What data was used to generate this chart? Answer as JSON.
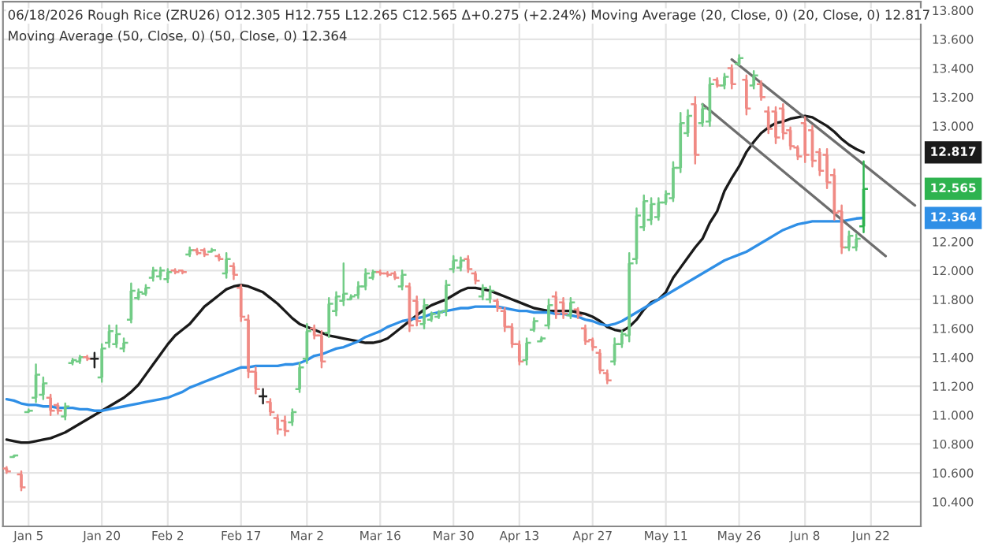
{
  "chart_data": {
    "type": "candlestick",
    "title": "06/18/2026 Rough Rice (ZRU26) O12.305 H12.755 L12.265 C12.565 Δ+0.275 (+2.24%) Moving Average (20, Close, 0) (20, Close, 0) 12.817",
    "subtitle": "Moving Average (50, Close, 0) (50, Close, 0) 12.364",
    "categories": [
      null,
      null,
      null,
      "Jan 5",
      null,
      null,
      null,
      null,
      null,
      null,
      null,
      null,
      null,
      "Jan 20",
      null,
      null,
      null,
      null,
      null,
      null,
      null,
      null,
      "Feb 2",
      null,
      null,
      null,
      null,
      null,
      null,
      null,
      null,
      null,
      "Feb 17",
      null,
      null,
      null,
      null,
      null,
      null,
      null,
      null,
      "Mar 2",
      null,
      null,
      null,
      null,
      null,
      null,
      null,
      null,
      null,
      "Mar 16",
      null,
      null,
      null,
      null,
      null,
      null,
      null,
      null,
      null,
      "Mar 30",
      null,
      null,
      null,
      null,
      null,
      null,
      null,
      null,
      "Apr 13",
      null,
      null,
      null,
      null,
      null,
      null,
      null,
      null,
      null,
      "Apr 27",
      null,
      null,
      null,
      null,
      null,
      null,
      null,
      null,
      null,
      "May 11",
      null,
      null,
      null,
      null,
      null,
      null,
      null,
      null,
      null,
      "May 26",
      null,
      null,
      null,
      null,
      null,
      null,
      null,
      null,
      "Jun 8",
      null,
      null,
      null,
      null,
      null,
      null,
      null,
      null,
      "Jun 22",
      null,
      null,
      null,
      null,
      null,
      null
    ],
    "ohlc": [
      [
        10.63,
        10.64,
        10.6,
        10.61
      ],
      [
        10.71,
        10.72,
        10.71,
        10.72
      ],
      [
        10.59,
        10.61,
        10.48,
        10.5
      ],
      [
        11.02,
        11.04,
        11.02,
        11.03
      ],
      [
        11.12,
        11.35,
        11.09,
        11.28
      ],
      [
        11.14,
        11.26,
        11.11,
        11.22
      ],
      [
        11.12,
        11.14,
        11.0,
        11.03
      ],
      [
        11.07,
        11.08,
        11.01,
        11.03
      ],
      [
        10.99,
        11.08,
        10.97,
        11.06
      ],
      [
        11.36,
        11.39,
        11.35,
        11.38
      ],
      [
        11.37,
        11.41,
        11.36,
        11.4
      ],
      [
        11.4,
        11.41,
        11.38,
        11.39
      ],
      [
        11.39,
        11.43,
        11.33,
        11.39
      ],
      [
        11.26,
        11.49,
        11.23,
        11.46
      ],
      [
        11.5,
        11.62,
        11.47,
        11.58
      ],
      [
        11.49,
        11.62,
        11.47,
        11.56
      ],
      [
        11.46,
        11.53,
        11.44,
        11.5
      ],
      [
        11.66,
        11.91,
        11.64,
        11.86
      ],
      [
        11.81,
        11.87,
        11.8,
        11.85
      ],
      [
        11.84,
        11.9,
        11.83,
        11.88
      ],
      [
        11.95,
        12.02,
        11.93,
        12.0
      ],
      [
        11.96,
        12.02,
        11.94,
        12.0
      ],
      [
        11.94,
        12.01,
        11.92,
        11.99
      ],
      [
        12.0,
        12.01,
        11.98,
        11.99
      ],
      [
        12.0,
        12.0,
        11.98,
        11.99
      ],
      [
        12.11,
        12.16,
        12.1,
        12.14
      ],
      [
        12.14,
        12.15,
        12.11,
        12.12
      ],
      [
        12.14,
        12.15,
        12.1,
        12.11
      ],
      [
        12.13,
        12.15,
        12.13,
        12.14
      ],
      [
        12.1,
        12.11,
        12.07,
        12.08
      ],
      [
        11.98,
        12.12,
        11.95,
        12.08
      ],
      [
        12.03,
        12.05,
        11.94,
        11.97
      ],
      [
        11.88,
        11.9,
        11.65,
        11.68
      ],
      [
        11.66,
        11.69,
        11.26,
        11.3
      ],
      [
        11.3,
        11.33,
        11.15,
        11.18
      ],
      [
        11.13,
        11.18,
        11.08,
        11.13
      ],
      [
        11.09,
        11.11,
        11.0,
        11.02
      ],
      [
        10.98,
        11.0,
        10.87,
        10.9
      ],
      [
        10.96,
        10.99,
        10.86,
        10.89
      ],
      [
        10.95,
        11.04,
        10.93,
        11.02
      ],
      [
        11.18,
        11.36,
        11.16,
        11.33
      ],
      [
        11.39,
        11.63,
        11.36,
        11.58
      ],
      [
        11.6,
        11.62,
        11.53,
        11.55
      ],
      [
        11.55,
        11.58,
        11.33,
        11.37
      ],
      [
        11.57,
        11.81,
        11.54,
        11.77
      ],
      [
        11.72,
        11.85,
        11.69,
        11.82
      ],
      [
        11.79,
        12.05,
        11.76,
        11.84
      ],
      [
        11.8,
        11.83,
        11.8,
        11.82
      ],
      [
        11.83,
        11.92,
        11.81,
        11.89
      ],
      [
        11.89,
        12.01,
        11.87,
        11.98
      ],
      [
        11.95,
        12.0,
        11.94,
        11.99
      ],
      [
        11.99,
        12.0,
        11.97,
        11.98
      ],
      [
        11.98,
        11.99,
        11.96,
        11.97
      ],
      [
        11.98,
        11.99,
        11.94,
        11.95
      ],
      [
        11.89,
        12.0,
        11.87,
        11.97
      ],
      [
        11.89,
        11.91,
        11.58,
        11.62
      ],
      [
        11.79,
        11.82,
        11.62,
        11.65
      ],
      [
        11.63,
        11.8,
        11.6,
        11.76
      ],
      [
        11.66,
        11.71,
        11.65,
        11.7
      ],
      [
        11.68,
        11.72,
        11.67,
        11.71
      ],
      [
        11.72,
        11.93,
        11.69,
        11.9
      ],
      [
        12.01,
        12.1,
        11.99,
        12.07
      ],
      [
        12.02,
        12.09,
        12.0,
        12.07
      ],
      [
        12.08,
        12.1,
        11.99,
        12.01
      ],
      [
        11.98,
        11.99,
        11.91,
        11.93
      ],
      [
        11.82,
        11.9,
        11.8,
        11.88
      ],
      [
        11.8,
        11.89,
        11.78,
        11.86
      ],
      [
        11.79,
        11.8,
        11.72,
        11.74
      ],
      [
        11.72,
        11.74,
        11.58,
        11.61
      ],
      [
        11.61,
        11.63,
        11.47,
        11.49
      ],
      [
        11.49,
        11.51,
        11.35,
        11.37
      ],
      [
        11.38,
        11.53,
        11.35,
        11.5
      ],
      [
        11.59,
        11.67,
        11.58,
        11.65
      ],
      [
        11.51,
        11.54,
        11.51,
        11.53
      ],
      [
        11.62,
        11.8,
        11.6,
        11.76
      ],
      [
        11.82,
        11.85,
        11.67,
        11.7
      ],
      [
        11.78,
        11.81,
        11.67,
        11.7
      ],
      [
        11.69,
        11.81,
        11.67,
        11.78
      ],
      [
        11.73,
        11.74,
        11.67,
        11.69
      ],
      [
        11.6,
        11.62,
        11.49,
        11.51
      ],
      [
        11.52,
        11.53,
        11.45,
        11.47
      ],
      [
        11.43,
        11.45,
        11.29,
        11.31
      ],
      [
        11.29,
        11.31,
        11.22,
        11.24
      ],
      [
        11.37,
        11.53,
        11.35,
        11.49
      ],
      [
        11.49,
        11.58,
        11.47,
        11.56
      ],
      [
        11.55,
        12.12,
        11.51,
        12.05
      ],
      [
        12.08,
        12.43,
        12.05,
        12.38
      ],
      [
        12.3,
        12.52,
        12.28,
        12.48
      ],
      [
        12.35,
        12.5,
        12.32,
        12.46
      ],
      [
        12.37,
        12.5,
        12.35,
        12.47
      ],
      [
        12.47,
        12.55,
        12.46,
        12.53
      ],
      [
        12.5,
        12.75,
        12.48,
        12.71
      ],
      [
        12.71,
        13.09,
        12.68,
        13.02
      ],
      [
        12.95,
        13.11,
        12.93,
        13.07
      ],
      [
        13.15,
        13.2,
        12.74,
        12.8
      ],
      [
        13.02,
        13.15,
        13.0,
        13.12
      ],
      [
        13.03,
        13.33,
        13.0,
        13.29
      ],
      [
        13.32,
        13.33,
        13.27,
        13.28
      ],
      [
        13.28,
        13.36,
        13.26,
        13.34
      ],
      [
        13.4,
        13.42,
        13.26,
        13.29
      ],
      [
        13.43,
        13.49,
        13.42,
        13.47
      ],
      [
        13.32,
        13.35,
        13.08,
        13.12
      ],
      [
        13.28,
        13.38,
        13.26,
        13.35
      ],
      [
        13.29,
        13.31,
        13.18,
        13.2
      ],
      [
        13.1,
        13.13,
        12.95,
        12.98
      ],
      [
        13.1,
        13.13,
        12.88,
        12.92
      ],
      [
        13.12,
        13.15,
        12.91,
        12.95
      ],
      [
        12.97,
        12.99,
        12.84,
        12.86
      ],
      [
        12.85,
        12.86,
        12.77,
        12.79
      ],
      [
        13.02,
        13.06,
        12.75,
        12.8
      ],
      [
        12.97,
        13.0,
        12.72,
        12.76
      ],
      [
        12.82,
        12.84,
        12.66,
        12.69
      ],
      [
        12.8,
        12.84,
        12.57,
        12.61
      ],
      [
        12.66,
        12.7,
        12.35,
        12.4
      ],
      [
        12.41,
        12.45,
        12.12,
        12.16
      ],
      [
        12.16,
        12.27,
        12.14,
        12.24
      ],
      [
        12.16,
        12.25,
        12.14,
        12.22
      ],
      [
        12.305,
        12.755,
        12.265,
        12.565
      ],
      null,
      null,
      null,
      null,
      null,
      null,
      null
    ],
    "colors": [
      "#f08a84",
      "#72cc86",
      "#f08a84",
      "#72cc86",
      "#72cc86",
      "#72cc86",
      "#f08a84",
      "#f08a84",
      "#72cc86",
      "#72cc86",
      "#72cc86",
      "#f08a84",
      "#222222",
      "#72cc86",
      "#72cc86",
      "#72cc86",
      "#72cc86",
      "#72cc86",
      "#72cc86",
      "#72cc86",
      "#72cc86",
      "#72cc86",
      "#72cc86",
      "#f08a84",
      "#f08a84",
      "#72cc86",
      "#f08a84",
      "#f08a84",
      "#72cc86",
      "#f08a84",
      "#72cc86",
      "#f08a84",
      "#f08a84",
      "#f08a84",
      "#f08a84",
      "#222222",
      "#f08a84",
      "#f08a84",
      "#f08a84",
      "#72cc86",
      "#72cc86",
      "#72cc86",
      "#f08a84",
      "#f08a84",
      "#72cc86",
      "#72cc86",
      "#72cc86",
      "#72cc86",
      "#72cc86",
      "#72cc86",
      "#72cc86",
      "#f08a84",
      "#f08a84",
      "#f08a84",
      "#72cc86",
      "#f08a84",
      "#f08a84",
      "#72cc86",
      "#72cc86",
      "#72cc86",
      "#72cc86",
      "#72cc86",
      "#72cc86",
      "#f08a84",
      "#f08a84",
      "#72cc86",
      "#72cc86",
      "#f08a84",
      "#f08a84",
      "#f08a84",
      "#f08a84",
      "#72cc86",
      "#72cc86",
      "#72cc86",
      "#72cc86",
      "#f08a84",
      "#f08a84",
      "#72cc86",
      "#f08a84",
      "#f08a84",
      "#f08a84",
      "#f08a84",
      "#f08a84",
      "#72cc86",
      "#72cc86",
      "#72cc86",
      "#72cc86",
      "#72cc86",
      "#72cc86",
      "#72cc86",
      "#72cc86",
      "#72cc86",
      "#72cc86",
      "#72cc86",
      "#f08a84",
      "#72cc86",
      "#72cc86",
      "#f08a84",
      "#72cc86",
      "#f08a84",
      "#72cc86",
      "#f08a84",
      "#72cc86",
      "#f08a84",
      "#f08a84",
      "#f08a84",
      "#f08a84",
      "#f08a84",
      "#f08a84",
      "#f08a84",
      "#f08a84",
      "#f08a84",
      "#f08a84",
      "#f08a84",
      "#f08a84",
      "#72cc86",
      "#72cc86",
      "#2eb34f",
      null,
      null,
      null,
      null,
      null,
      null,
      null
    ],
    "series": [
      {
        "type": "line",
        "color": "#1a1a1a",
        "values": [
          10.83,
          10.82,
          10.81,
          10.81,
          10.82,
          10.83,
          10.84,
          10.86,
          10.88,
          10.91,
          10.94,
          10.97,
          11.0,
          11.03,
          11.06,
          11.09,
          11.12,
          11.16,
          11.21,
          11.28,
          11.35,
          11.42,
          11.49,
          11.55,
          11.59,
          11.63,
          11.69,
          11.75,
          11.79,
          11.83,
          11.87,
          11.89,
          11.9,
          11.89,
          11.87,
          11.85,
          11.81,
          11.77,
          11.72,
          11.67,
          11.63,
          11.61,
          11.59,
          11.57,
          11.55,
          11.54,
          11.53,
          11.52,
          11.51,
          11.5,
          11.5,
          11.51,
          11.53,
          11.57,
          11.61,
          11.65,
          11.69,
          11.73,
          11.76,
          11.78,
          11.8,
          11.83,
          11.86,
          11.88,
          11.88,
          11.87,
          11.86,
          11.84,
          11.82,
          11.8,
          11.78,
          11.76,
          11.74,
          11.73,
          11.72,
          11.72,
          11.72,
          11.72,
          11.71,
          11.7,
          11.68,
          11.65,
          11.61,
          11.59,
          11.58,
          11.61,
          11.66,
          11.73,
          11.78,
          11.8,
          11.85,
          11.95,
          12.02,
          12.09,
          12.16,
          12.22,
          12.33,
          12.41,
          12.55,
          12.64,
          12.72,
          12.82,
          12.89,
          12.95,
          12.99,
          13.02,
          13.03,
          13.05,
          13.06,
          13.07,
          13.06,
          13.03,
          13.0,
          12.96,
          12.91,
          12.87,
          12.84,
          12.817,
          null,
          null,
          null,
          null,
          null,
          null,
          null
        ]
      },
      {
        "type": "line",
        "color": "#2f8fe6",
        "values": [
          11.11,
          11.1,
          11.08,
          11.07,
          11.07,
          11.06,
          11.06,
          11.05,
          11.05,
          11.05,
          11.04,
          11.04,
          11.03,
          11.03,
          11.04,
          11.05,
          11.06,
          11.07,
          11.08,
          11.09,
          11.1,
          11.11,
          11.12,
          11.14,
          11.16,
          11.19,
          11.21,
          11.23,
          11.25,
          11.27,
          11.29,
          11.31,
          11.33,
          11.33,
          11.34,
          11.34,
          11.34,
          11.34,
          11.35,
          11.35,
          11.36,
          11.38,
          11.41,
          11.42,
          11.44,
          11.46,
          11.47,
          11.49,
          11.51,
          11.54,
          11.56,
          11.58,
          11.61,
          11.63,
          11.65,
          11.66,
          11.67,
          11.68,
          11.7,
          11.71,
          11.72,
          11.73,
          11.74,
          11.74,
          11.75,
          11.75,
          11.75,
          11.75,
          11.74,
          11.73,
          11.72,
          11.72,
          11.71,
          11.71,
          11.71,
          11.7,
          11.7,
          11.69,
          11.68,
          11.66,
          11.65,
          11.63,
          11.62,
          11.63,
          11.65,
          11.68,
          11.71,
          11.74,
          11.77,
          11.8,
          11.83,
          11.86,
          11.89,
          11.92,
          11.95,
          11.98,
          12.01,
          12.04,
          12.07,
          12.09,
          12.11,
          12.13,
          12.16,
          12.19,
          12.22,
          12.25,
          12.28,
          12.3,
          12.32,
          12.33,
          12.34,
          12.34,
          12.34,
          12.34,
          12.34,
          12.35,
          12.36,
          12.364,
          null,
          null,
          null,
          null,
          null,
          null,
          null
        ]
      },
      {
        "type": "line",
        "color": "#6e6e6e",
        "values": [
          null,
          null,
          null,
          null,
          null,
          null,
          null,
          null,
          null,
          null,
          null,
          null,
          null,
          null,
          null,
          null,
          null,
          null,
          null,
          null,
          null,
          null,
          null,
          null,
          null,
          null,
          null,
          null,
          null,
          null,
          null,
          null,
          null,
          null,
          null,
          null,
          null,
          null,
          null,
          null,
          null,
          null,
          null,
          null,
          null,
          null,
          null,
          null,
          null,
          null,
          null,
          null,
          null,
          null,
          null,
          null,
          null,
          null,
          null,
          null,
          null,
          null,
          null,
          null,
          null,
          null,
          null,
          null,
          null,
          null,
          null,
          null,
          null,
          null,
          null,
          null,
          null,
          null,
          null,
          null,
          null,
          null,
          null,
          null,
          null,
          null,
          null,
          null,
          null,
          null,
          null,
          null,
          null,
          null,
          null,
          null,
          null,
          null,
          null,
          13.46,
          null,
          null,
          null,
          null,
          null,
          null,
          null,
          null,
          null,
          null,
          null,
          null,
          null,
          null,
          null,
          null,
          null,
          null,
          null,
          null,
          null,
          null,
          null,
          null,
          12.45
        ]
      },
      {
        "type": "line",
        "color": "#6e6e6e",
        "values": [
          null,
          null,
          null,
          null,
          null,
          null,
          null,
          null,
          null,
          null,
          null,
          null,
          null,
          null,
          null,
          null,
          null,
          null,
          null,
          null,
          null,
          null,
          null,
          null,
          null,
          null,
          null,
          null,
          null,
          null,
          null,
          null,
          null,
          null,
          null,
          null,
          null,
          null,
          null,
          null,
          null,
          null,
          null,
          null,
          null,
          null,
          null,
          null,
          null,
          null,
          null,
          null,
          null,
          null,
          null,
          null,
          null,
          null,
          null,
          null,
          null,
          null,
          null,
          null,
          null,
          null,
          null,
          null,
          null,
          null,
          null,
          null,
          null,
          null,
          null,
          null,
          null,
          null,
          null,
          null,
          null,
          null,
          null,
          null,
          null,
          null,
          null,
          null,
          null,
          null,
          null,
          null,
          null,
          null,
          null,
          13.15,
          null,
          null,
          null,
          null,
          null,
          null,
          null,
          null,
          null,
          null,
          null,
          null,
          null,
          null,
          null,
          null,
          null,
          null,
          null,
          null,
          null,
          null,
          null,
          null,
          12.1,
          null,
          null,
          null,
          null
        ]
      }
    ],
    "annotations": [
      "12.817",
      "12.565",
      "12.364"
    ],
    "ylim": [
      10.23,
      13.86
    ],
    "yticks": [
      {
        "value": 10.4,
        "label": "10.400"
      },
      {
        "value": 10.6,
        "label": "10.600"
      },
      {
        "value": 10.8,
        "label": "10.800"
      },
      {
        "value": 11.0,
        "label": "11.000"
      },
      {
        "value": 11.2,
        "label": "11.200"
      },
      {
        "value": 11.4,
        "label": "11.400"
      },
      {
        "value": 11.6,
        "label": "11.600"
      },
      {
        "value": 11.8,
        "label": "11.800"
      },
      {
        "value": 12.0,
        "label": "12.000"
      },
      {
        "value": 12.2,
        "label": "12.200"
      },
      {
        "value": 12.4,
        "label": null
      },
      {
        "value": 12.6,
        "label": null
      },
      {
        "value": 12.8,
        "label": null
      },
      {
        "value": 13.0,
        "label": "13.000"
      },
      {
        "value": 13.2,
        "label": "13.200"
      },
      {
        "value": 13.4,
        "label": "13.400"
      },
      {
        "value": 13.6,
        "label": "13.600"
      },
      {
        "value": 13.8,
        "label": "13.800"
      }
    ],
    "grid": true
  }
}
